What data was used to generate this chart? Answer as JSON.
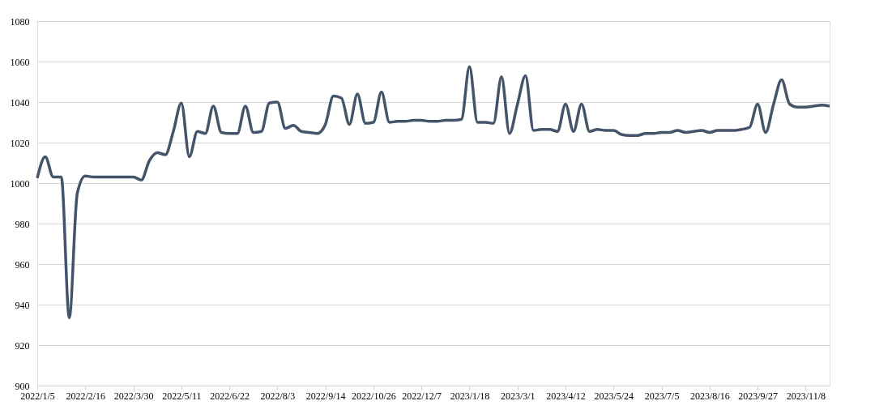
{
  "chart_data": {
    "type": "line",
    "x": [
      "2022-01-05",
      "2022-01-12",
      "2022-01-19",
      "2022-01-26",
      "2022-02-02",
      "2022-02-09",
      "2022-02-16",
      "2022-02-23",
      "2022-03-02",
      "2022-03-09",
      "2022-03-16",
      "2022-03-23",
      "2022-03-30",
      "2022-04-06",
      "2022-04-13",
      "2022-04-20",
      "2022-04-27",
      "2022-05-04",
      "2022-05-11",
      "2022-05-18",
      "2022-05-25",
      "2022-06-01",
      "2022-06-08",
      "2022-06-15",
      "2022-06-22",
      "2022-06-29",
      "2022-07-06",
      "2022-07-13",
      "2022-07-20",
      "2022-07-27",
      "2022-08-03",
      "2022-08-10",
      "2022-08-17",
      "2022-08-24",
      "2022-08-31",
      "2022-09-07",
      "2022-09-14",
      "2022-09-21",
      "2022-09-28",
      "2022-10-05",
      "2022-10-12",
      "2022-10-19",
      "2022-10-26",
      "2022-11-02",
      "2022-11-09",
      "2022-11-16",
      "2022-11-23",
      "2022-11-30",
      "2022-12-07",
      "2022-12-14",
      "2022-12-21",
      "2022-12-28",
      "2023-01-04",
      "2023-01-11",
      "2023-01-18",
      "2023-01-25",
      "2023-02-01",
      "2023-02-08",
      "2023-02-15",
      "2023-02-22",
      "2023-03-01",
      "2023-03-08",
      "2023-03-15",
      "2023-03-22",
      "2023-03-29",
      "2023-04-05",
      "2023-04-12",
      "2023-04-19",
      "2023-04-26",
      "2023-05-03",
      "2023-05-10",
      "2023-05-17",
      "2023-05-24",
      "2023-05-31",
      "2023-06-07",
      "2023-06-14",
      "2023-06-21",
      "2023-06-28",
      "2023-07-05",
      "2023-07-12",
      "2023-07-19",
      "2023-07-26",
      "2023-08-02",
      "2023-08-09",
      "2023-08-16",
      "2023-08-23",
      "2023-08-30",
      "2023-09-06",
      "2023-09-13",
      "2023-09-20",
      "2023-09-27",
      "2023-10-04",
      "2023-10-11",
      "2023-10-18",
      "2023-10-25",
      "2023-11-01",
      "2023-11-08",
      "2023-11-15",
      "2023-11-22",
      "2023-11-29"
    ],
    "series": [
      {
        "color": "#44546a",
        "values": [
          1002.5,
          1013,
          1003,
          1003,
          933.5,
          995,
          1003.5,
          1003,
          1003,
          1003,
          1003,
          1003,
          1003,
          1001.5,
          1011,
          1015,
          1014,
          1025.5,
          1039.5,
          1013,
          1025.5,
          1024.5,
          1038,
          1025,
          1024.5,
          1024.5,
          1038,
          1025,
          1025.5,
          1039.5,
          1040,
          1027,
          1028.5,
          1025.5,
          1025,
          1024.5,
          1029,
          1043,
          1042,
          1029,
          1044,
          1029.5,
          1030,
          1045,
          1030,
          1030.5,
          1030.5,
          1031,
          1031,
          1030.5,
          1030.5,
          1031,
          1031,
          1031.5,
          1057.5,
          1030,
          1030,
          1029.5,
          1052.5,
          1024.5,
          1039,
          1053,
          1026,
          1026.5,
          1026.5,
          1025.5,
          1039,
          1025.5,
          1039,
          1025.5,
          1026.5,
          1026,
          1026,
          1024,
          1023.5,
          1023.5,
          1024.5,
          1024.5,
          1025,
          1025,
          1026,
          1025,
          1025.5,
          1026,
          1025,
          1026,
          1026,
          1026,
          1026.5,
          1027.5,
          1039,
          1025,
          1039,
          1051,
          1039,
          1037.5,
          1037.5,
          1038,
          1038.5,
          1038
        ]
      }
    ],
    "xlim": [
      "2022-01-05",
      "2023-11-29"
    ],
    "xticks": [
      {
        "value": "2022-01-05",
        "label": "2022/1/5"
      },
      {
        "value": "2022-02-16",
        "label": "2022/2/16"
      },
      {
        "value": "2022-03-30",
        "label": "2022/3/30"
      },
      {
        "value": "2022-05-11",
        "label": "2022/5/11"
      },
      {
        "value": "2022-06-22",
        "label": "2022/6/22"
      },
      {
        "value": "2022-08-03",
        "label": "2022/8/3"
      },
      {
        "value": "2022-09-14",
        "label": "2022/9/14"
      },
      {
        "value": "2022-10-26",
        "label": "2022/10/26"
      },
      {
        "value": "2022-12-07",
        "label": "2022/12/7"
      },
      {
        "value": "2023-01-18",
        "label": "2023/1/18"
      },
      {
        "value": "2023-03-01",
        "label": "2023/3/1"
      },
      {
        "value": "2023-04-12",
        "label": "2023/4/12"
      },
      {
        "value": "2023-05-24",
        "label": "2023/5/24"
      },
      {
        "value": "2023-07-05",
        "label": "2023/7/5"
      },
      {
        "value": "2023-08-16",
        "label": "2023/8/16"
      },
      {
        "value": "2023-09-27",
        "label": "2023/9/27"
      },
      {
        "value": "2023-11-08",
        "label": "2023/11/8"
      }
    ],
    "ylim": [
      900,
      1080
    ],
    "yticks": [
      900,
      920,
      940,
      960,
      980,
      1000,
      1020,
      1040,
      1060,
      1080
    ],
    "grid": "y",
    "legend": false,
    "marker": "none",
    "line_style": "solid"
  }
}
